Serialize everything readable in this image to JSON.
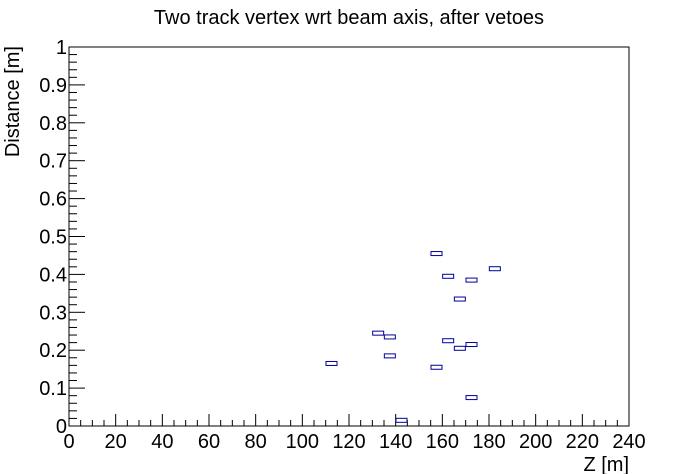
{
  "chart_data": {
    "type": "scatter",
    "title": "Two track vertex wrt beam axis, after vetoes",
    "xlabel": "Z [m]",
    "ylabel": "Distance [m]",
    "xlim": [
      0,
      240
    ],
    "ylim": [
      0,
      1
    ],
    "xticks": [
      "0",
      "20",
      "40",
      "60",
      "80",
      "100",
      "120",
      "140",
      "160",
      "180",
      "200",
      "220",
      "240"
    ],
    "yticks": [
      "0",
      "0.1",
      "0.2",
      "0.3",
      "0.4",
      "0.5",
      "0.6",
      "0.7",
      "0.8",
      "0.9",
      "1"
    ],
    "grid": false,
    "marker": "box",
    "marker_color": "#000099",
    "points": [
      {
        "x": 112.5,
        "y": 0.165
      },
      {
        "x": 132.5,
        "y": 0.245
      },
      {
        "x": 137.5,
        "y": 0.235
      },
      {
        "x": 137.5,
        "y": 0.185
      },
      {
        "x": 142.5,
        "y": 0.015
      },
      {
        "x": 157.5,
        "y": 0.455
      },
      {
        "x": 157.5,
        "y": 0.155
      },
      {
        "x": 162.5,
        "y": 0.395
      },
      {
        "x": 162.5,
        "y": 0.225
      },
      {
        "x": 167.5,
        "y": 0.335
      },
      {
        "x": 167.5,
        "y": 0.205
      },
      {
        "x": 172.5,
        "y": 0.385
      },
      {
        "x": 172.5,
        "y": 0.215
      },
      {
        "x": 172.5,
        "y": 0.075
      },
      {
        "x": 182.5,
        "y": 0.415
      }
    ]
  }
}
